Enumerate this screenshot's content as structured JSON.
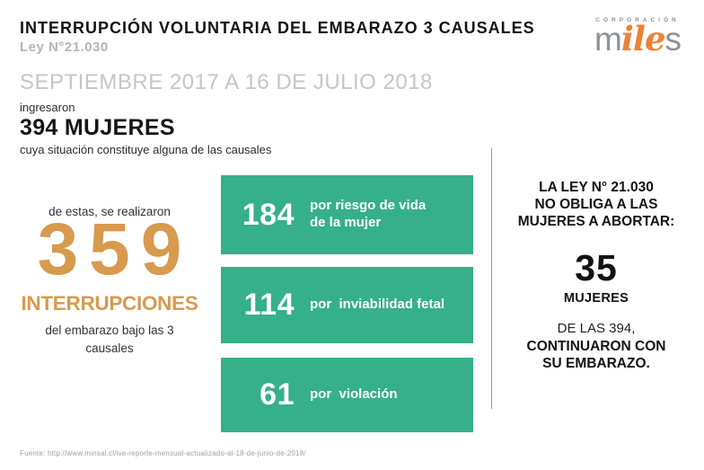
{
  "colors": {
    "accent_orange": "#d79a4f",
    "brand_orange": "#ee8136",
    "green": "#36b089",
    "gray_subtitle": "#b5b5b5",
    "gray_period": "#c6c6c6",
    "divider_gray": "#9b9b9b",
    "footer_gray": "#9f9f9f"
  },
  "header": {
    "title": "INTERRUPCIÓN VOLUNTARIA DEL EMBARAZO 3 CAUSALES",
    "law": "Ley N°21.030",
    "logo": {
      "top": "CORPORACIÓN",
      "word_start": "m",
      "word_accent": "ile",
      "word_end": "s"
    }
  },
  "period": "SEPTIEMBRE 2017 A 16 DE JULIO 2018",
  "intake": {
    "lead": "ingresaron",
    "count": "394 MUJERES",
    "caption": "cuya situación constituye alguna de las causales"
  },
  "stat": {
    "intro": "de estas, se realizaron",
    "number": "359",
    "label": "INTERRUPCIONES",
    "caption": "del embarazo bajo las 3\ncausales"
  },
  "causes": [
    {
      "value": "184",
      "label": "por riesgo de vida\nde la mujer"
    },
    {
      "value": "114",
      "label": "por  inviabilidad fetal"
    },
    {
      "value": "61",
      "label": "por  violación"
    }
  ],
  "panel": {
    "heading": "LA LEY N° 21.030\nNO OBLIGA A LAS\nMUJERES A ABORTAR:",
    "number": "35",
    "number_label": "MUJERES",
    "sub_line": "DE LAS 394,",
    "bold_lines": "CONTINUARON CON\nSU EMBARAZO."
  },
  "footer": {
    "source": "Fuente: http://www.minsal.cl/ive-reporte-mensual-actualizado-al-18-de-junio-de-2018/"
  },
  "chart_data": {
    "type": "bar",
    "title": "Interrupción Voluntaria del Embarazo 3 Causales (Ley N°21.030)",
    "subtitle": "Septiembre 2017 a 16 de julio 2018",
    "categories": [
      "por riesgo de vida de la mujer",
      "por inviabilidad fetal",
      "por violación"
    ],
    "values": [
      184,
      114,
      61
    ],
    "annotations": {
      "mujeres_ingresaron": 394,
      "interrupciones_realizadas": 359,
      "mujeres_continuaron_embarazo": 35
    },
    "legend_position": "none",
    "grid": false
  }
}
